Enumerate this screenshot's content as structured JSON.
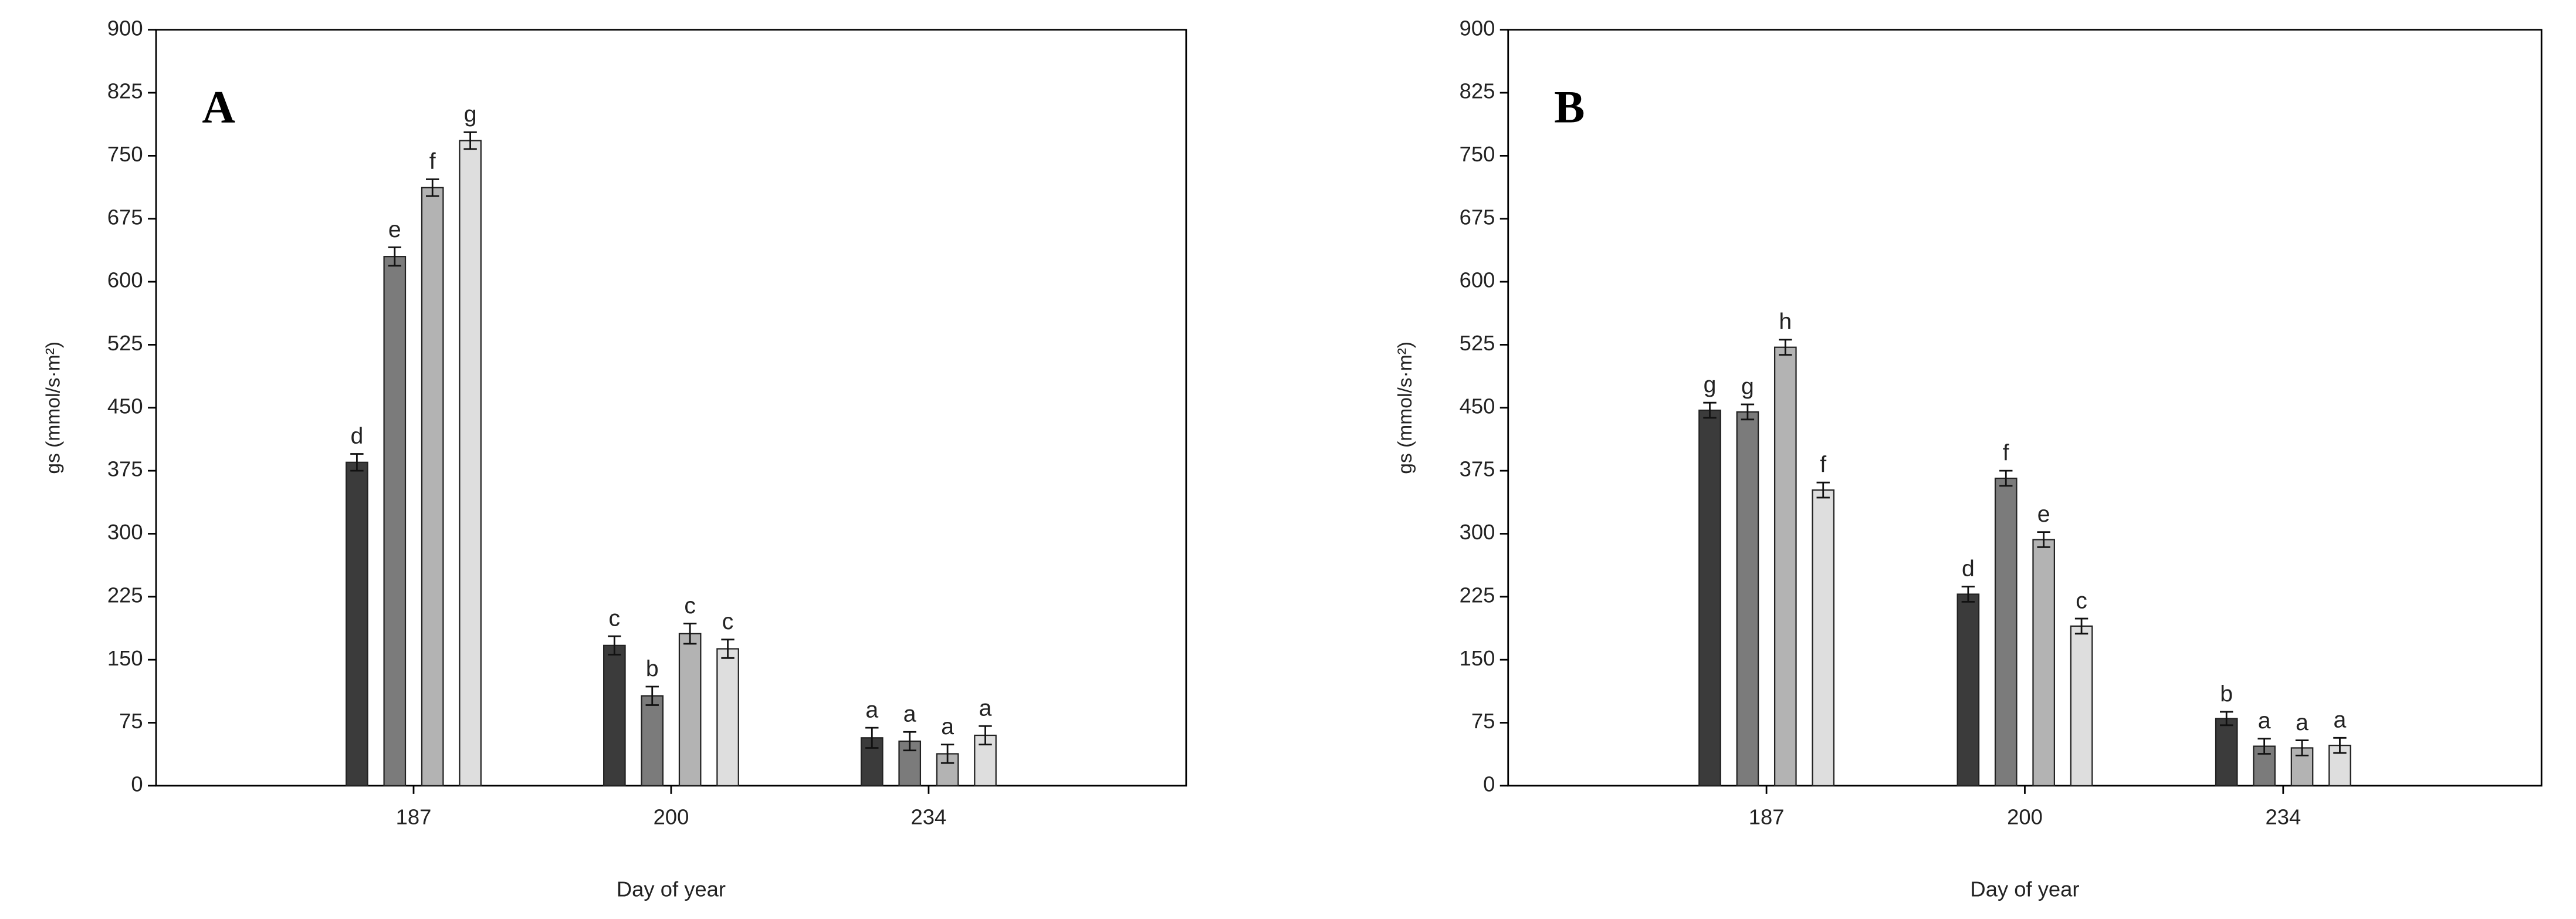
{
  "chart_data": [
    {
      "type": "bar",
      "panel_label": "A",
      "xlabel": "Day of year",
      "ylabel": "gs (mmol/s·m²)",
      "categories": [
        "187",
        "200",
        "234"
      ],
      "series": [
        {
          "color": "#3b3b3b",
          "values": [
            385,
            167,
            57
          ],
          "errors": [
            10,
            11,
            12
          ],
          "letters": [
            "d",
            "c",
            "a"
          ]
        },
        {
          "color": "#7b7b7b",
          "values": [
            630,
            107,
            53
          ],
          "errors": [
            11,
            11,
            11
          ],
          "letters": [
            "e",
            "b",
            "a"
          ]
        },
        {
          "color": "#b3b3b3",
          "values": [
            712,
            181,
            38
          ],
          "errors": [
            10,
            12,
            11
          ],
          "letters": [
            "f",
            "c",
            "a"
          ]
        },
        {
          "color": "#dedede",
          "values": [
            768,
            163,
            60
          ],
          "errors": [
            10,
            11,
            11
          ],
          "letters": [
            "g",
            "c",
            "a"
          ]
        }
      ],
      "ylim": [
        0,
        900
      ],
      "yticks": [
        0,
        75,
        150,
        225,
        300,
        375,
        450,
        525,
        600,
        675,
        750,
        825,
        900
      ]
    },
    {
      "type": "bar",
      "panel_label": "B",
      "xlabel": "Day of year",
      "ylabel": "gs (mmol/s·m²)",
      "categories": [
        "187",
        "200",
        "234"
      ],
      "series": [
        {
          "color": "#3b3b3b",
          "values": [
            447,
            228,
            80
          ],
          "errors": [
            9,
            9,
            8
          ],
          "letters": [
            "g",
            "d",
            "b"
          ]
        },
        {
          "color": "#7b7b7b",
          "values": [
            445,
            366,
            47
          ],
          "errors": [
            9,
            9,
            9
          ],
          "letters": [
            "g",
            "f",
            "a"
          ]
        },
        {
          "color": "#b3b3b3",
          "values": [
            522,
            293,
            45
          ],
          "errors": [
            9,
            9,
            9
          ],
          "letters": [
            "h",
            "e",
            "a"
          ]
        },
        {
          "color": "#dedede",
          "values": [
            352,
            190,
            48
          ],
          "errors": [
            9,
            9,
            9
          ],
          "letters": [
            "f",
            "c",
            "a"
          ]
        }
      ],
      "ylim": [
        0,
        900
      ],
      "yticks": [
        0,
        75,
        150,
        225,
        300,
        375,
        450,
        525,
        600,
        675,
        750,
        825,
        900
      ]
    }
  ]
}
